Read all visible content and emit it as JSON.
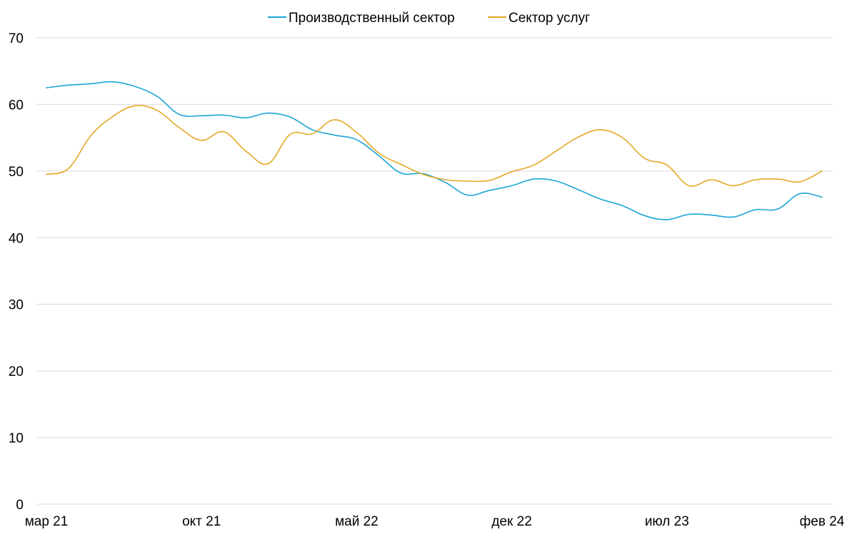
{
  "chart_data": {
    "type": "line",
    "title": "",
    "xlabel": "",
    "ylabel": "",
    "x": [
      "мар 21",
      "апр 21",
      "май 21",
      "июн 21",
      "июл 21",
      "авг 21",
      "сен 21",
      "окт 21",
      "ноя 21",
      "дек 21",
      "янв 22",
      "фев 22",
      "мар 22",
      "апр 22",
      "май 22",
      "июн 22",
      "июл 22",
      "авг 22",
      "сен 22",
      "окт 22",
      "ноя 22",
      "дек 22",
      "янв 23",
      "фев 23",
      "мар 23",
      "апр 23",
      "май 23",
      "июн 23",
      "июл 23",
      "авг 23",
      "сен 23",
      "окт 23",
      "ноя 23",
      "дек 23",
      "янв 24",
      "фев 24"
    ],
    "xticks": [
      "мар 21",
      "окт 21",
      "май 22",
      "дек 22",
      "июл 23",
      "фев 24"
    ],
    "ylim": [
      0,
      70
    ],
    "yticks": [
      0,
      10,
      20,
      30,
      40,
      50,
      60,
      70
    ],
    "grid": true,
    "legend_position": "top-center",
    "series": [
      {
        "name": "Производственный сектор",
        "color": "#1ba5d6",
        "values": [
          62.5,
          62.9,
          63.1,
          63.4,
          62.7,
          61.2,
          58.5,
          58.3,
          58.4,
          58.0,
          58.7,
          58.1,
          56.2,
          55.4,
          54.7,
          52.3,
          49.7,
          49.6,
          48.3,
          46.4,
          47.1,
          47.8,
          48.8,
          48.5,
          47.2,
          45.8,
          44.8,
          43.3,
          42.7,
          43.5,
          43.4,
          43.1,
          44.2,
          44.3,
          46.6,
          46.1
        ]
      },
      {
        "name": "Сектор услуг",
        "color": "#e3a823",
        "values": [
          49.5,
          50.4,
          55.3,
          58.2,
          59.8,
          59.1,
          56.5,
          54.6,
          55.9,
          53.0,
          51.1,
          55.5,
          55.6,
          57.7,
          55.8,
          52.7,
          51.0,
          49.5,
          48.7,
          48.5,
          48.6,
          49.9,
          50.9,
          53.0,
          55.1,
          56.2,
          55.0,
          51.9,
          50.9,
          47.8,
          48.7,
          47.8,
          48.7,
          48.8,
          48.4,
          50.0
        ]
      }
    ]
  }
}
